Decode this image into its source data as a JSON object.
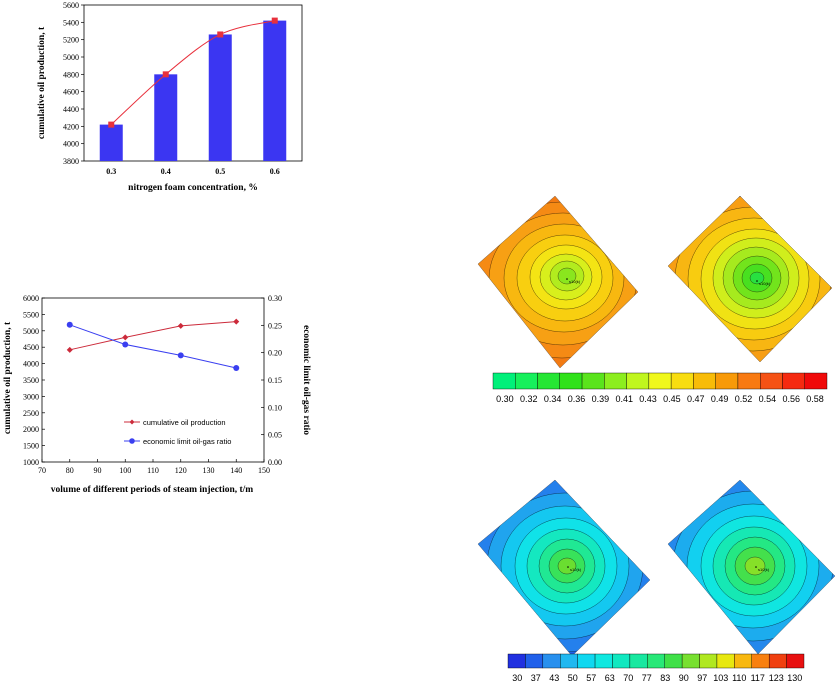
{
  "chart_data": [
    {
      "type": "bar",
      "categories": [
        "0.3",
        "0.4",
        "0.5",
        "0.6"
      ],
      "values": [
        4220,
        4800,
        5260,
        5420
      ],
      "line_values": [
        4220,
        4800,
        5260,
        5420
      ],
      "xlabel": "nitrogen foam concentration, %",
      "ylabel": "cumulative oil production, t",
      "ylim": [
        3800,
        5600
      ],
      "yticks": [
        "3800",
        "4000",
        "4200",
        "4400",
        "4600",
        "4800",
        "5000",
        "5200",
        "5400",
        "5600"
      ],
      "bar_color": "#3b36f2",
      "line_color": "#e8303c",
      "marker_color": "#e8303c"
    },
    {
      "type": "line",
      "x": [
        80,
        100,
        120,
        140
      ],
      "series": [
        {
          "name": "cumulative oil production",
          "axis": "left",
          "values": [
            4420,
            4800,
            5150,
            5280
          ],
          "color": "#cc2b3b"
        },
        {
          "name": "economic limit oil-gas ratio",
          "axis": "right",
          "values": [
            0.251,
            0.215,
            0.195,
            0.172
          ],
          "color": "#3a3ff0"
        }
      ],
      "xlabel": "volume of different periods of steam injection,  t/m",
      "ylabel": "cumulative oil production, t",
      "y2label": "economic limit oil-gas ratio",
      "xlim": [
        70,
        150
      ],
      "ylim": [
        1000,
        6000
      ],
      "y2lim": [
        0,
        0.3
      ],
      "xticks": [
        "70",
        "80",
        "90",
        "100",
        "110",
        "120",
        "130",
        "140",
        "150"
      ],
      "yticks": [
        "1000",
        "1500",
        "2000",
        "2500",
        "3000",
        "3500",
        "4000",
        "4500",
        "5000",
        "5500",
        "6000"
      ],
      "y2ticks": [
        "0.00",
        "0.05",
        "0.10",
        "0.15",
        "0.20",
        "0.25",
        "0.30"
      ],
      "legend_placement": "bottom-right"
    },
    {
      "type": "heatmap",
      "colorbar_ticks": [
        "0.30",
        "0.32",
        "0.34",
        "0.36",
        "0.39",
        "0.41",
        "0.43",
        "0.45",
        "0.47",
        "0.49",
        "0.52",
        "0.54",
        "0.56",
        "0.58"
      ],
      "colorbar_colors": [
        "#00f07a",
        "#16f05c",
        "#25e634",
        "#30e21a",
        "#5ae41c",
        "#8cee1e",
        "#c0f61e",
        "#f0f81c",
        "#f8dd10",
        "#f8bc08",
        "#f89a08",
        "#f87a12",
        "#f55215",
        "#f52a10",
        "#f00a0a"
      ],
      "well_label": "s10(k)"
    },
    {
      "type": "heatmap",
      "colorbar_ticks": [
        "30",
        "37",
        "43",
        "50",
        "57",
        "63",
        "70",
        "77",
        "83",
        "90",
        "97",
        "103",
        "110",
        "117",
        "123",
        "130"
      ],
      "colorbar_colors": [
        "#2030e0",
        "#2060ea",
        "#2890ee",
        "#20b8f0",
        "#10d8f0",
        "#10e8e0",
        "#10e8c0",
        "#18e8a0",
        "#28e878",
        "#40e048",
        "#78e030",
        "#b0e820",
        "#e8e810",
        "#f8b810",
        "#f88010",
        "#f04010",
        "#e81010"
      ],
      "well_label": "s10(k)"
    }
  ]
}
